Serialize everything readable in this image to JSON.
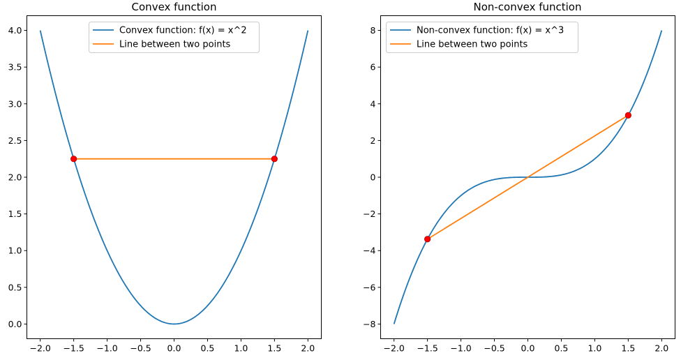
{
  "chart_data": [
    {
      "type": "line",
      "title": "Convex function",
      "xlabel": "",
      "ylabel": "",
      "xlim": [
        -2.2,
        2.2
      ],
      "ylim": [
        -0.2,
        4.2
      ],
      "xticks": [
        -2.0,
        -1.5,
        -1.0,
        -0.5,
        0.0,
        0.5,
        1.0,
        1.5,
        2.0
      ],
      "xtick_labels": [
        "−2.0",
        "−1.5",
        "−1.0",
        "−0.5",
        "0.0",
        "0.5",
        "1.0",
        "1.5",
        "2.0"
      ],
      "yticks": [
        0.0,
        0.5,
        1.0,
        1.5,
        2.0,
        2.5,
        3.0,
        3.5,
        4.0
      ],
      "ytick_labels": [
        "0.0",
        "0.5",
        "1.0",
        "1.5",
        "2.0",
        "2.5",
        "3.0",
        "3.5",
        "4.0"
      ],
      "legend_position": "top-center",
      "series": [
        {
          "name": "Convex function: f(x) = x^2",
          "color": "#1f77b4",
          "x": [
            -2.0,
            -1.8,
            -1.6,
            -1.5,
            -1.4,
            -1.2,
            -1.0,
            -0.8,
            -0.6,
            -0.4,
            -0.2,
            0.0,
            0.2,
            0.4,
            0.6,
            0.8,
            1.0,
            1.2,
            1.4,
            1.5,
            1.6,
            1.8,
            2.0
          ],
          "y": [
            4.0,
            3.24,
            2.56,
            2.25,
            1.96,
            1.44,
            1.0,
            0.64,
            0.36,
            0.16,
            0.04,
            0.0,
            0.04,
            0.16,
            0.36,
            0.64,
            1.0,
            1.44,
            1.96,
            2.25,
            2.56,
            3.24,
            4.0
          ]
        },
        {
          "name": "Line between two points",
          "color": "#ff7f0e",
          "x": [
            -1.5,
            1.5
          ],
          "y": [
            2.25,
            2.25
          ]
        }
      ],
      "points": {
        "color": "#ff0000",
        "x": [
          -1.5,
          1.5
        ],
        "y": [
          2.25,
          2.25
        ]
      }
    },
    {
      "type": "line",
      "title": "Non-convex function",
      "xlabel": "",
      "ylabel": "",
      "xlim": [
        -2.2,
        2.2
      ],
      "ylim": [
        -8.8,
        8.8
      ],
      "xticks": [
        -2.0,
        -1.5,
        -1.0,
        -0.5,
        0.0,
        0.5,
        1.0,
        1.5,
        2.0
      ],
      "xtick_labels": [
        "−2.0",
        "−1.5",
        "−1.0",
        "−0.5",
        "0.0",
        "0.5",
        "1.0",
        "1.5",
        "2.0"
      ],
      "yticks": [
        -8,
        -6,
        -4,
        -2,
        0,
        2,
        4,
        6,
        8
      ],
      "ytick_labels": [
        "−8",
        "−6",
        "−4",
        "−2",
        "0",
        "2",
        "4",
        "6",
        "8"
      ],
      "legend_position": "top-left",
      "series": [
        {
          "name": "Non-convex function: f(x) = x^3",
          "color": "#1f77b4",
          "x": [
            -2.0,
            -1.8,
            -1.6,
            -1.5,
            -1.4,
            -1.2,
            -1.0,
            -0.8,
            -0.6,
            -0.4,
            -0.2,
            0.0,
            0.2,
            0.4,
            0.6,
            0.8,
            1.0,
            1.2,
            1.4,
            1.5,
            1.6,
            1.8,
            2.0
          ],
          "y": [
            -8.0,
            -5.832,
            -4.096,
            -3.375,
            -2.744,
            -1.728,
            -1.0,
            -0.512,
            -0.216,
            -0.064,
            -0.008,
            0.0,
            0.008,
            0.064,
            0.216,
            0.512,
            1.0,
            1.728,
            2.744,
            3.375,
            4.096,
            5.832,
            8.0
          ]
        },
        {
          "name": "Line between two points",
          "color": "#ff7f0e",
          "x": [
            -1.5,
            1.5
          ],
          "y": [
            -3.375,
            3.375
          ]
        }
      ],
      "points": {
        "color": "#ff0000",
        "x": [
          -1.5,
          1.5
        ],
        "y": [
          -3.375,
          3.375
        ]
      }
    }
  ]
}
